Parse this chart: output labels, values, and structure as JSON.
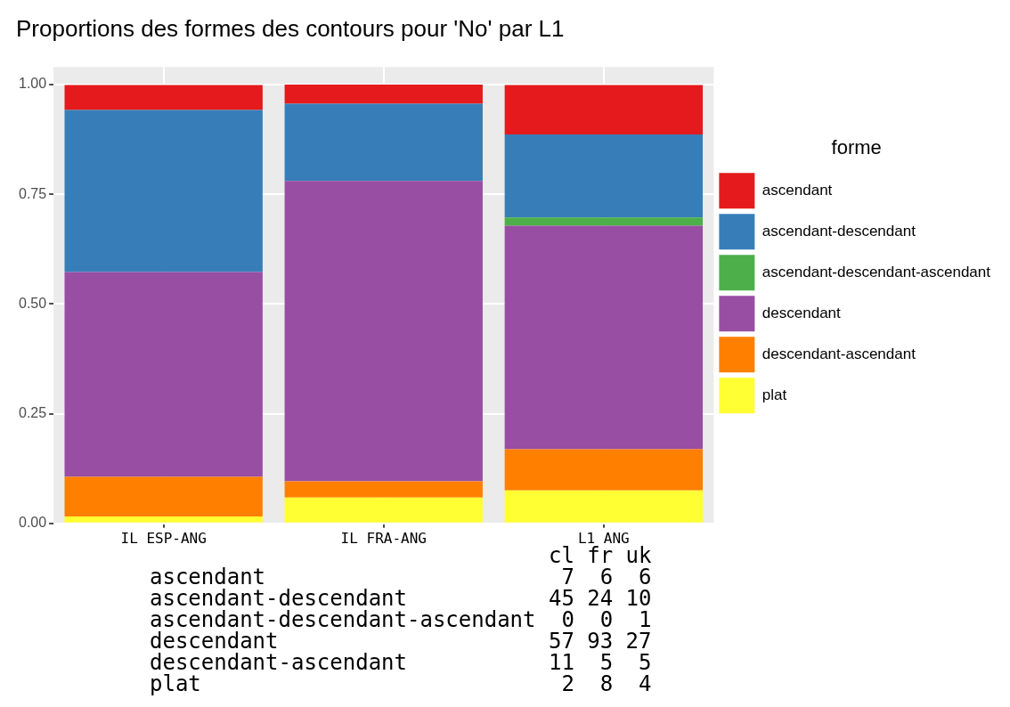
{
  "chart_data": {
    "type": "bar",
    "title": "Proportions des formes des contours pour 'No' par L1",
    "categories": [
      "IL ESP-ANG",
      "IL FRA-ANG",
      "L1 ANG"
    ],
    "stacked": true,
    "legend_title": "forme",
    "legend": "right",
    "grid": true,
    "ylim": [
      0,
      1.04
    ],
    "yticks": [
      {
        "value": 0,
        "label": "0.00"
      },
      {
        "value": 0.25,
        "label": "0.25"
      },
      {
        "value": 0.5,
        "label": "0.50"
      },
      {
        "value": 0.75,
        "label": "0.75"
      },
      {
        "value": 1,
        "label": "1.00"
      }
    ],
    "series": [
      {
        "name": "plat",
        "color": "#ffff33",
        "values": [
          0.016,
          0.059,
          0.075
        ]
      },
      {
        "name": "descendant-ascendant",
        "color": "#ff7f00",
        "values": [
          0.09,
          0.037,
          0.094
        ]
      },
      {
        "name": "descendant",
        "color": "#984ea3",
        "values": [
          0.467,
          0.684,
          0.509
        ]
      },
      {
        "name": "ascendant-descendant-ascendant",
        "color": "#4daf4a",
        "values": [
          0,
          0,
          0.019
        ]
      },
      {
        "name": "ascendant-descendant",
        "color": "#377eb8",
        "values": [
          0.369,
          0.176,
          0.189
        ]
      },
      {
        "name": "ascendant",
        "color": "#e41a1c",
        "values": [
          0.057,
          0.044,
          0.113
        ]
      }
    ],
    "annotations": [
      "                               cl fr uk",
      "ascendant                       7  6  6",
      "ascendant-descendant           45 24 10",
      "ascendant-descendant-ascendant  0  0  1",
      "descendant                     57 93 27",
      "descendant-ascendant           11  5  5",
      "plat                            2  8  4"
    ]
  }
}
